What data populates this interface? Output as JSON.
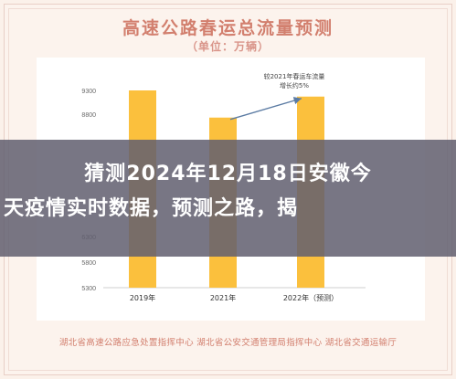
{
  "header": {
    "title": "高速公路春运总流量预测",
    "subtitle": "（单位：万辆）"
  },
  "chart_data": {
    "type": "bar",
    "categories": [
      "2019年",
      "2021年",
      "2022年（预测）"
    ],
    "values": [
      9300,
      8730,
      9170
    ],
    "yticks": [
      5300,
      5800,
      6300,
      8800,
      9300
    ],
    "ylim": [
      5300,
      9300
    ],
    "annotation": {
      "line1": "较2021年春运车流量",
      "line2": "增长约5%"
    },
    "colors": {
      "bar": "#fbc03d",
      "arrow": "#5b7ba3",
      "axis": "#cfcfcf"
    }
  },
  "overlay": {
    "line1": "猜测2024年12月18日安徽今",
    "line2": "天疫情实时数据，预测之路，揭"
  },
  "footer": {
    "credit": "湖北省高速公路应急处置指挥中心 湖北省公安交通管理局指挥中心 湖北省交通运输厅"
  }
}
